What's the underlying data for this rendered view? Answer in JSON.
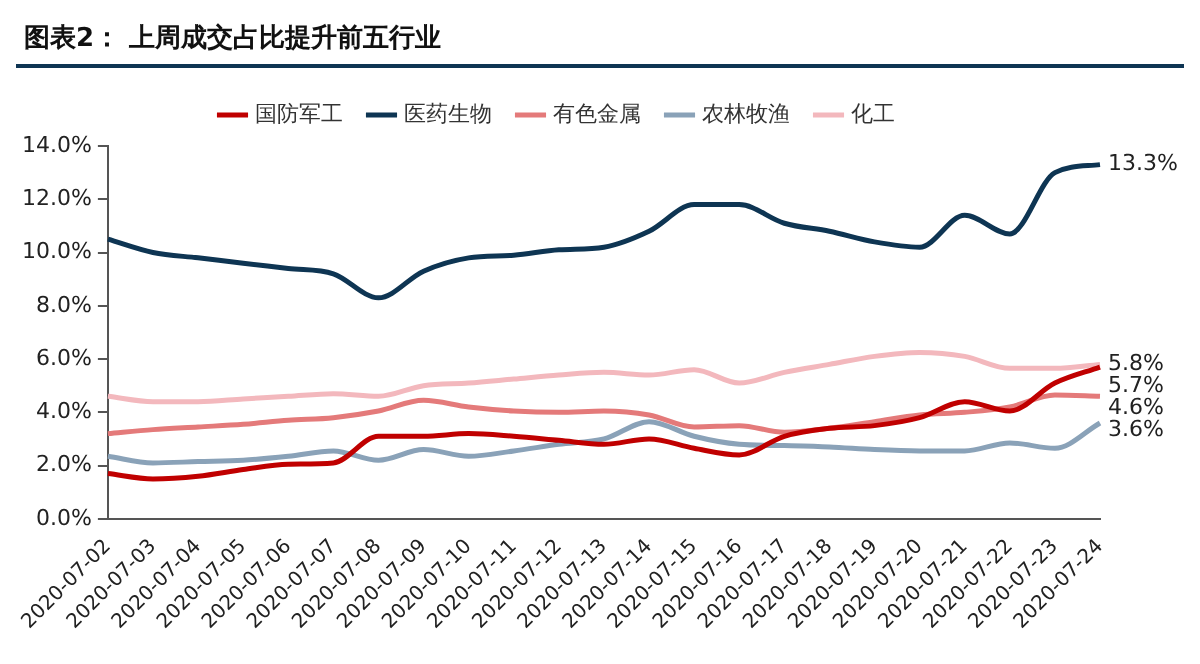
{
  "chart_data": {
    "type": "line",
    "title": "图表2：  上周成交占比提升前五行业",
    "categories": [
      "2020-07-02",
      "2020-07-03",
      "2020-07-04",
      "2020-07-05",
      "2020-07-06",
      "2020-07-07",
      "2020-07-08",
      "2020-07-09",
      "2020-07-10",
      "2020-07-11",
      "2020-07-12",
      "2020-07-13",
      "2020-07-14",
      "2020-07-15",
      "2020-07-16",
      "2020-07-17",
      "2020-07-18",
      "2020-07-19",
      "2020-07-20",
      "2020-07-21",
      "2020-07-22",
      "2020-07-23",
      "2020-07-24"
    ],
    "series": [
      {
        "name": "国防军工",
        "color": "#c00000",
        "values": [
          1.7,
          1.5,
          1.6,
          1.85,
          2.05,
          2.1,
          3.1,
          3.1,
          3.2,
          3.1,
          2.95,
          2.8,
          3.0,
          2.65,
          2.4,
          3.1,
          3.4,
          3.5,
          3.8,
          4.4,
          4.05,
          5.1,
          5.7
        ]
      },
      {
        "name": "医药生物",
        "color": "#0e3553",
        "values": [
          10.5,
          10.0,
          9.8,
          9.6,
          9.4,
          9.2,
          8.3,
          9.3,
          9.8,
          9.9,
          10.1,
          10.2,
          10.8,
          11.8,
          11.8,
          11.1,
          10.8,
          10.4,
          10.2,
          11.4,
          10.7,
          13.0,
          13.3
        ]
      },
      {
        "name": "有色金属",
        "color": "#e47a7a",
        "values": [
          3.2,
          3.35,
          3.45,
          3.55,
          3.7,
          3.8,
          4.05,
          4.45,
          4.2,
          4.05,
          4.0,
          4.05,
          3.9,
          3.45,
          3.5,
          3.25,
          3.4,
          3.65,
          3.9,
          4.0,
          4.2,
          4.65,
          4.6
        ]
      },
      {
        "name": "农林牧渔",
        "color": "#8aa2b8",
        "values": [
          2.35,
          2.1,
          2.15,
          2.2,
          2.35,
          2.55,
          2.2,
          2.6,
          2.35,
          2.55,
          2.8,
          3.0,
          3.65,
          3.1,
          2.8,
          2.75,
          2.7,
          2.6,
          2.55,
          2.55,
          2.85,
          2.65,
          3.6
        ]
      },
      {
        "name": "化工",
        "color": "#f3b8bd",
        "values": [
          4.6,
          4.4,
          4.4,
          4.5,
          4.6,
          4.7,
          4.6,
          5.0,
          5.1,
          5.25,
          5.4,
          5.5,
          5.4,
          5.6,
          5.1,
          5.5,
          5.8,
          6.1,
          6.25,
          6.1,
          5.65,
          5.65,
          5.8
        ]
      }
    ],
    "ylim": [
      0,
      14
    ],
    "yticks": [
      {
        "value": 0,
        "label": "0.0%"
      },
      {
        "value": 2,
        "label": "2.0%"
      },
      {
        "value": 4,
        "label": "4.0%"
      },
      {
        "value": 6,
        "label": "6.0%"
      },
      {
        "value": 8,
        "label": "8.0%"
      },
      {
        "value": 10,
        "label": "10.0%"
      },
      {
        "value": 12,
        "label": "12.0%"
      },
      {
        "value": 14,
        "label": "14.0%"
      }
    ],
    "grid": false,
    "legend": "top",
    "marker": "none",
    "line_style": "solid",
    "annotations": [
      {
        "text": "13.3%",
        "x": "2020-07-24",
        "y": 13.3
      },
      {
        "text": "5.8%",
        "x": "2020-07-24",
        "y": 5.8
      },
      {
        "text": "5.7%",
        "x": "2020-07-24",
        "y": 5.7
      },
      {
        "text": "4.6%",
        "x": "2020-07-24",
        "y": 4.6
      },
      {
        "text": "3.6%",
        "x": "2020-07-24",
        "y": 3.6
      }
    ]
  }
}
